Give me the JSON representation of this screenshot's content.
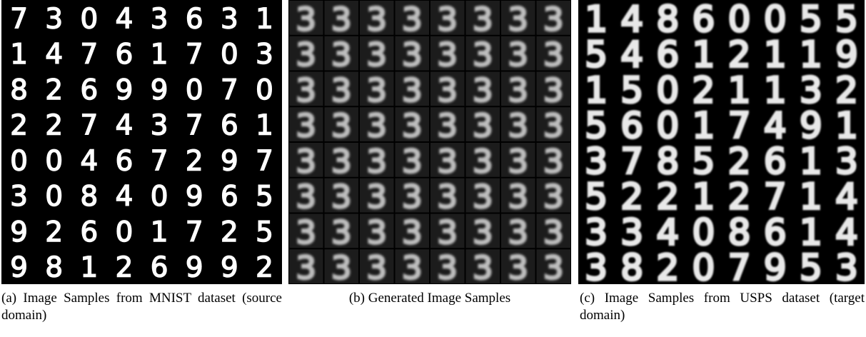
{
  "panels": [
    {
      "caption": "(a) Image Samples from MNIST dataset (source domain)",
      "rows": [
        "73043631",
        "14761703",
        "82699070",
        "22743761",
        "00467297",
        "30840965",
        "92601725",
        "98126992"
      ]
    },
    {
      "caption": "(b) Generated Image Samples",
      "rows": [
        "33333333",
        "33333333",
        "33333333",
        "33333333",
        "33333333",
        "33333333",
        "33333333",
        "33333333"
      ]
    },
    {
      "caption": "(c) Image Samples from USPS dataset (target domain)",
      "rows": [
        "14860055",
        "54612119",
        "15021132",
        "56017491",
        "37852613",
        "52212714",
        "33408614",
        "38207953"
      ]
    }
  ]
}
